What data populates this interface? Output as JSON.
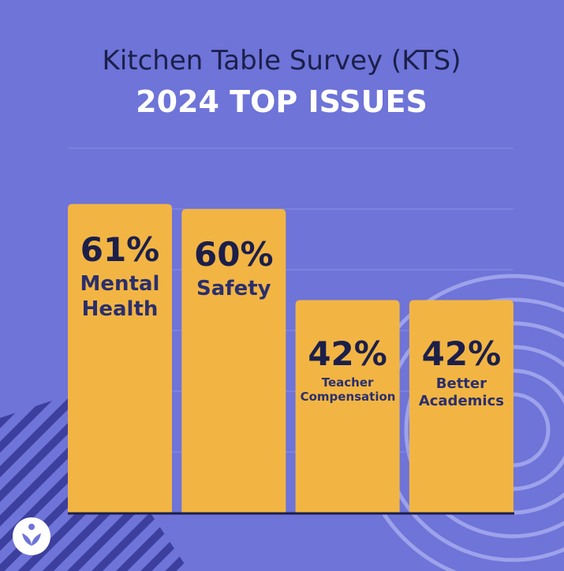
{
  "chart_data": {
    "type": "bar",
    "title": "Kitchen Table Survey (KTS)",
    "subtitle": "2024 TOP ISSUES",
    "categories": [
      "Mental Health",
      "Safety",
      "Teacher Compensation",
      "Better Academics"
    ],
    "values": [
      61,
      60,
      42,
      42
    ],
    "value_labels": [
      "61%",
      "60%",
      "42%",
      "42%"
    ],
    "color": "#f2b544",
    "ylim": [
      0,
      72
    ],
    "yticks": [
      0,
      12,
      24,
      36,
      48,
      60,
      72
    ],
    "grid": true
  }
}
